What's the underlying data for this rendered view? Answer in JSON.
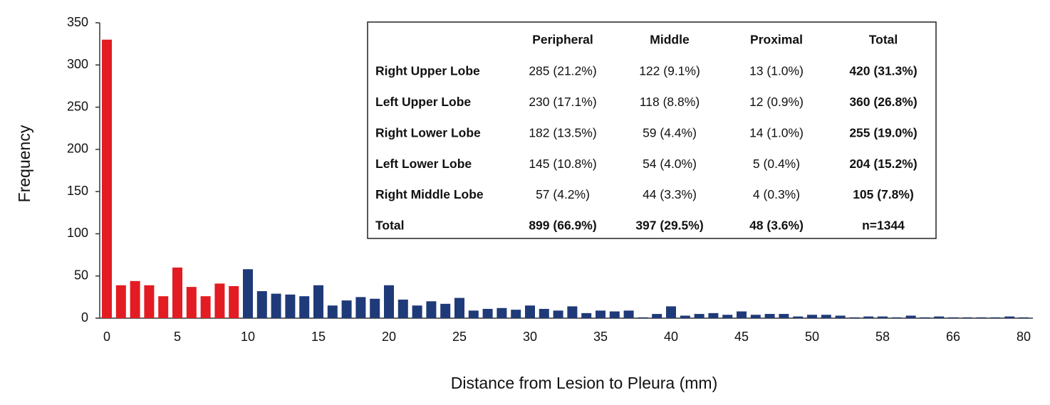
{
  "chart_data": {
    "type": "bar",
    "x_label": "Distance from Lesion to Pleura (mm)",
    "y_label": "Frequency",
    "categories": [
      "0",
      null,
      null,
      null,
      null,
      "5",
      null,
      null,
      null,
      null,
      "10",
      null,
      null,
      null,
      null,
      "15",
      null,
      null,
      null,
      null,
      "20",
      null,
      null,
      null,
      null,
      "25",
      null,
      null,
      null,
      null,
      "30",
      null,
      null,
      null,
      null,
      "35",
      null,
      null,
      null,
      null,
      "40",
      null,
      null,
      null,
      null,
      "45",
      null,
      null,
      null,
      null,
      "50",
      null,
      null,
      null,
      null,
      "58",
      null,
      null,
      null,
      null,
      "66",
      null,
      null,
      null,
      null,
      "80"
    ],
    "series": [
      {
        "color": "#e31b23",
        "values": [
          330,
          39,
          44,
          39,
          26,
          60,
          37,
          26,
          41,
          38,
          null,
          null,
          null,
          null,
          null,
          null,
          null,
          null,
          null,
          null,
          null,
          null,
          null,
          null,
          null,
          null,
          null,
          null,
          null,
          null,
          null,
          null,
          null,
          null,
          null,
          null,
          null,
          null,
          null,
          null,
          null,
          null,
          null,
          null,
          null,
          null,
          null,
          null,
          null,
          null,
          null,
          null,
          null,
          null,
          null,
          null,
          null,
          null,
          null,
          null,
          null,
          null,
          null,
          null,
          null,
          null
        ]
      },
      {
        "color": "#1f3a78",
        "values": [
          null,
          null,
          null,
          null,
          null,
          null,
          null,
          null,
          null,
          null,
          58,
          32,
          29,
          28,
          26,
          39,
          15,
          21,
          25,
          23,
          39,
          22,
          15,
          20,
          17,
          24,
          9,
          11,
          12,
          10,
          15,
          11,
          9,
          14,
          6,
          9,
          8,
          9,
          1,
          5,
          14,
          3,
          5,
          6,
          4,
          8,
          4,
          5,
          5,
          2,
          4,
          4,
          3,
          1,
          2,
          2,
          1,
          3,
          1,
          2,
          1,
          1,
          1,
          1,
          2,
          1
        ]
      }
    ],
    "ylim": [
      0,
      350
    ],
    "yticks": [
      0,
      50,
      100,
      150,
      200,
      250,
      300,
      350
    ],
    "grid": false
  },
  "table": {
    "header": [
      "Peripheral",
      "Middle",
      "Proximal",
      "Total"
    ],
    "rows": [
      {
        "label": "Right Upper Lobe",
        "cells": [
          "285 (21.2%)",
          "122 (9.1%)",
          "13 (1.0%)",
          "420 (31.3%)"
        ]
      },
      {
        "label": "Left Upper Lobe",
        "cells": [
          "230 (17.1%)",
          "118 (8.8%)",
          "12 (0.9%)",
          "360 (26.8%)"
        ]
      },
      {
        "label": "Right Lower Lobe",
        "cells": [
          "182 (13.5%)",
          "59 (4.4%)",
          "14 (1.0%)",
          "255 (19.0%)"
        ]
      },
      {
        "label": "Left Lower Lobe",
        "cells": [
          "145 (10.8%)",
          "54 (4.0%)",
          "5 (0.4%)",
          "204 (15.2%)"
        ]
      },
      {
        "label": "Right Middle Lobe",
        "cells": [
          "57 (4.2%)",
          "44 (3.3%)",
          "4 (0.3%)",
          "105 (7.8%)"
        ]
      },
      {
        "label": "Total",
        "cells": [
          "899 (66.9%)",
          "397 (29.5%)",
          "48 (3.6%)",
          "n=1344"
        ]
      }
    ]
  }
}
